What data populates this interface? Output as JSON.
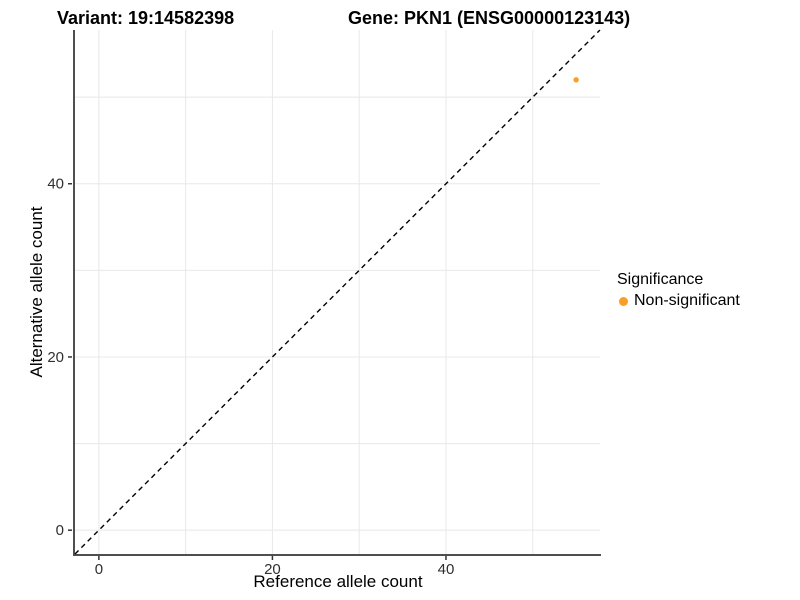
{
  "chart_data": {
    "type": "scatter",
    "title_left": "Variant: 19:14582398",
    "title_right": "Gene: PKN1 (ENSG00000123143)",
    "xlabel": "Reference allele count",
    "ylabel": "Alternative allele count",
    "x_ticks": [
      0,
      20,
      40
    ],
    "y_ticks": [
      0,
      20,
      40
    ],
    "grid_breaks": [
      0,
      10,
      20,
      30,
      40,
      50
    ],
    "xlim": [
      -2.75,
      57.75
    ],
    "ylim": [
      -2.75,
      57.75
    ],
    "grid_on": true,
    "identity_line": {
      "x1": -2.75,
      "y1": -2.75,
      "x2": 57.75,
      "y2": 57.75,
      "style": "dashed",
      "color": "#000000"
    },
    "series": [
      {
        "name": "Non-significant",
        "color": "#FB9E26",
        "points": [
          {
            "x": 55,
            "y": 52
          }
        ]
      }
    ],
    "legend": {
      "title": "Significance",
      "position": "right",
      "items": [
        {
          "label": "Non-significant",
          "color": "#FB9E26"
        }
      ]
    },
    "colors": {
      "grid": "#E8E8E8",
      "axis_line": "#4F4F4F",
      "tick_mark": "#333333",
      "tick_text": "#303030",
      "background": "#FFFFFF"
    }
  }
}
